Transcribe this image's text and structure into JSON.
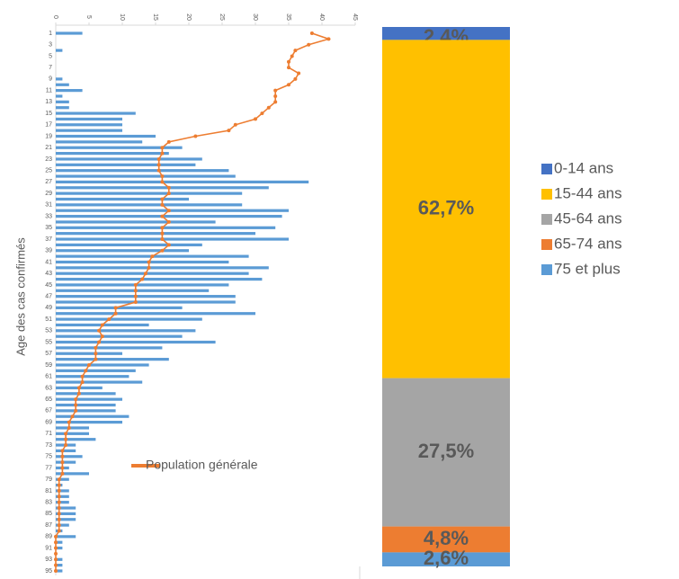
{
  "chart_data": [
    {
      "type": "bar",
      "orientation": "horizontal",
      "y_label": "Age des cas confirmés",
      "categories": [
        "1",
        null,
        "3",
        null,
        "5",
        null,
        "7",
        null,
        "9",
        null,
        "11",
        null,
        "13",
        null,
        "15",
        null,
        "17",
        null,
        "19",
        null,
        "21",
        null,
        "23",
        null,
        "25",
        null,
        "27",
        null,
        "29",
        null,
        "31",
        null,
        "33",
        null,
        "35",
        null,
        "37",
        null,
        "39",
        null,
        "41",
        null,
        "43",
        null,
        "45",
        null,
        "47",
        null,
        "49",
        null,
        "51",
        null,
        "53",
        null,
        "55",
        null,
        "57",
        null,
        "59",
        null,
        "61",
        null,
        "63",
        null,
        "65",
        null,
        "67",
        null,
        "69",
        null,
        "71",
        null,
        "73",
        null,
        "75",
        null,
        "77",
        null,
        "79",
        null,
        "81",
        null,
        "83",
        null,
        "85",
        null,
        "87",
        null,
        "89",
        null,
        "91",
        null,
        "93",
        null,
        "95"
      ],
      "series": [
        {
          "type": "bar",
          "color": "#5b9bd5",
          "values": [
            4,
            0,
            0,
            1,
            0,
            0,
            0,
            0,
            1,
            2,
            4,
            1,
            2,
            2,
            12,
            10,
            10,
            10,
            15,
            13,
            19,
            17,
            22,
            21,
            26,
            27,
            38,
            32,
            28,
            20,
            28,
            35,
            34,
            24,
            33,
            30,
            35,
            22,
            20,
            29,
            26,
            32,
            29,
            31,
            26,
            23,
            27,
            27,
            19,
            30,
            22,
            14,
            21,
            19,
            24,
            16,
            10,
            17,
            14,
            12,
            11,
            13,
            7,
            9,
            10,
            9,
            9,
            11,
            10,
            5,
            5,
            6,
            3,
            3,
            4,
            3,
            2,
            5,
            2,
            1,
            2,
            2,
            2,
            3,
            3,
            3,
            2,
            1,
            3,
            1,
            1,
            0,
            1,
            1,
            1
          ]
        },
        {
          "type": "line",
          "name": "Population générale",
          "color": "#ed7d31",
          "values": [
            38.5,
            41,
            38,
            36,
            35.5,
            35,
            35,
            36.5,
            36,
            35,
            33,
            33,
            33,
            32,
            31,
            30,
            27,
            26,
            21,
            17,
            16,
            16,
            15.5,
            15.5,
            15.5,
            16,
            16,
            17,
            17,
            16,
            16,
            17,
            16,
            17,
            16,
            16,
            16,
            17,
            16,
            14.5,
            14,
            14,
            13.5,
            13,
            12,
            12,
            12,
            12,
            9,
            9,
            8,
            7,
            6.5,
            7,
            6.5,
            6,
            6,
            6,
            5,
            4.5,
            4,
            4,
            3.5,
            3.5,
            3,
            3,
            3,
            2.5,
            2,
            2,
            1.5,
            1.5,
            1.5,
            1,
            1,
            1,
            1,
            1,
            0.5,
            0.5,
            0.5,
            0.5,
            0.5,
            0.5,
            0.5,
            0.5,
            0.5,
            0.5,
            0,
            0,
            0,
            0,
            0,
            0,
            0
          ]
        }
      ],
      "xlim": [
        0,
        45
      ],
      "xticks": [
        0,
        5,
        10,
        15,
        20,
        25,
        30,
        35,
        40,
        45
      ]
    },
    {
      "type": "stacked_bar",
      "series": [
        {
          "name": "0-14 ans",
          "color": "#4472c4",
          "values": [
            2.4
          ],
          "value_labels": [
            "2,4%"
          ]
        },
        {
          "name": "15-44 ans",
          "color": "#ffc000",
          "values": [
            62.7
          ],
          "value_labels": [
            "62,7%"
          ]
        },
        {
          "name": "45-64 ans",
          "color": "#a5a5a5",
          "values": [
            27.5
          ],
          "value_labels": [
            "27,5%"
          ]
        },
        {
          "name": "65-74 ans",
          "color": "#ed7d31",
          "values": [
            4.8
          ],
          "value_labels": [
            "4,8%"
          ]
        },
        {
          "name": "75 et plus",
          "color": "#5b9bd5",
          "values": [
            2.6
          ],
          "value_labels": [
            "2,6%"
          ]
        }
      ]
    }
  ]
}
